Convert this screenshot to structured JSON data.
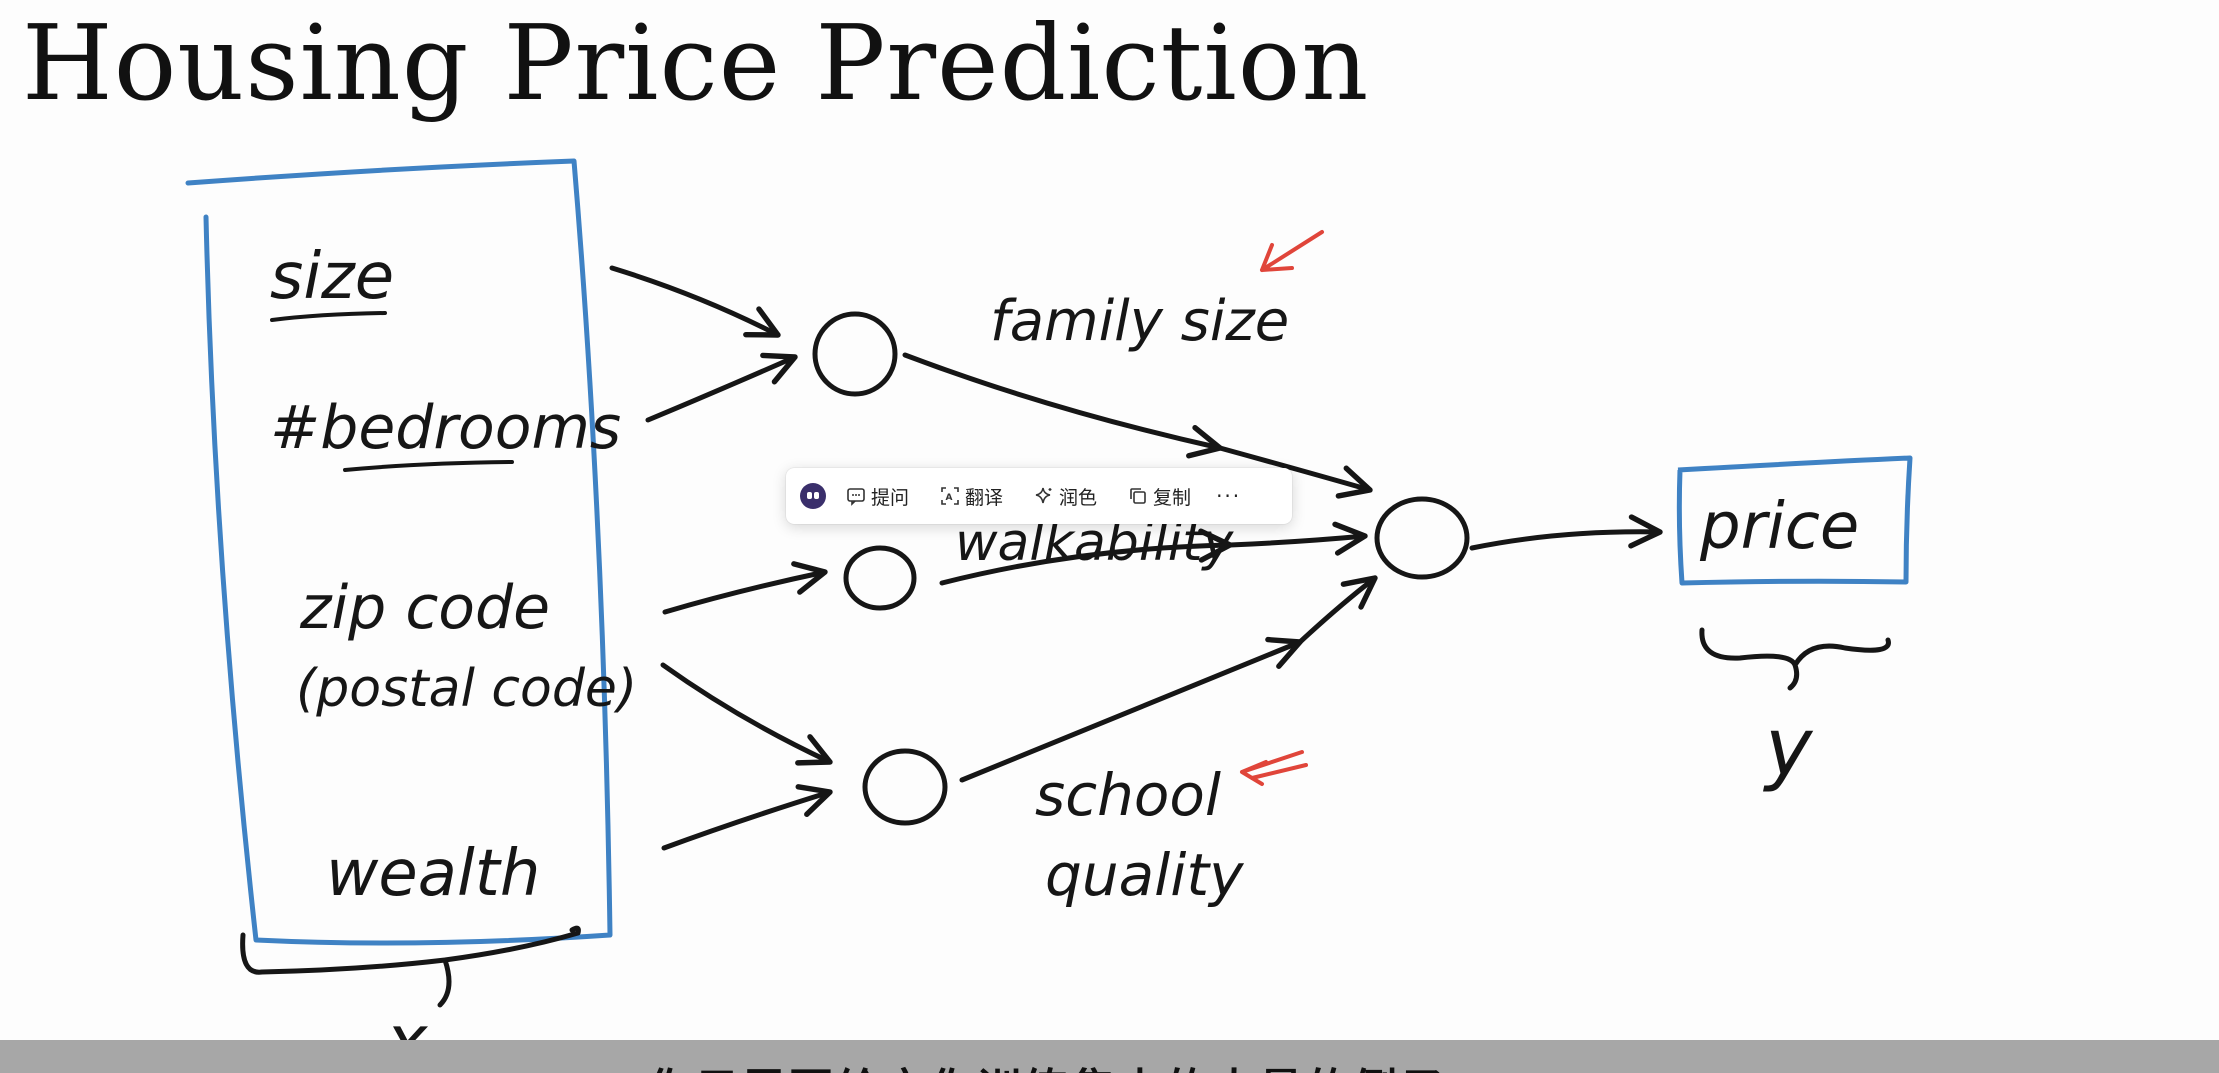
{
  "slide": {
    "title": "Housing Price Prediction",
    "inputs": [
      "size",
      "#bedrooms",
      "zip code",
      "(postal code)",
      "wealth"
    ],
    "hidden_labels": [
      "family size",
      "walkability",
      "school",
      "quality"
    ],
    "output_label": "price",
    "x_label": "x",
    "y_label": "y",
    "colors": {
      "ink": "#161616",
      "box_blue": "#3f82c4",
      "annotation_red": "#e0453a"
    }
  },
  "toolbar": {
    "ask": "提问",
    "translate": "翻译",
    "polish": "润色",
    "copy": "复制",
    "more": "···",
    "icons": [
      "assistant-logo-icon",
      "chat-bubble-icon",
      "translate-icon",
      "sparkle-icon",
      "copy-icon"
    ]
  },
  "subtitle": {
    "text": "你只需要给它你训练集中的大量的例子"
  }
}
